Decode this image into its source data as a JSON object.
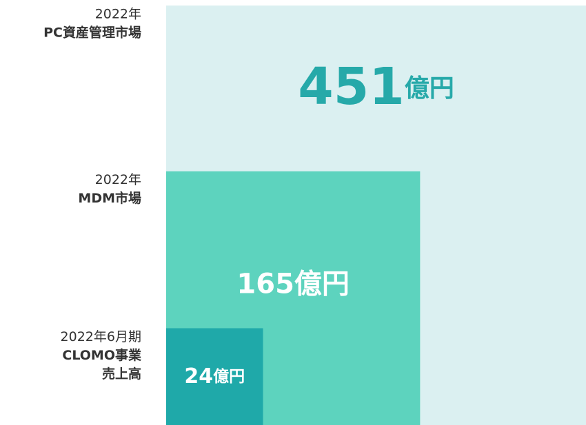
{
  "chart_data": {
    "type": "nested-square",
    "categories": [
      [
        "2022年",
        "PC資産管理市場"
      ],
      [
        "2022年",
        "MDM市場"
      ],
      [
        "2022年6月期",
        "CLOMO事業",
        "売上高"
      ]
    ],
    "values": [
      451,
      165,
      24
    ],
    "unit": "億円",
    "colors": [
      "#dbf0f1",
      "#5dd3be",
      "#1fa9a9"
    ],
    "label_colors": [
      "#26a9a9",
      "#ffffff",
      "#ffffff"
    ]
  }
}
